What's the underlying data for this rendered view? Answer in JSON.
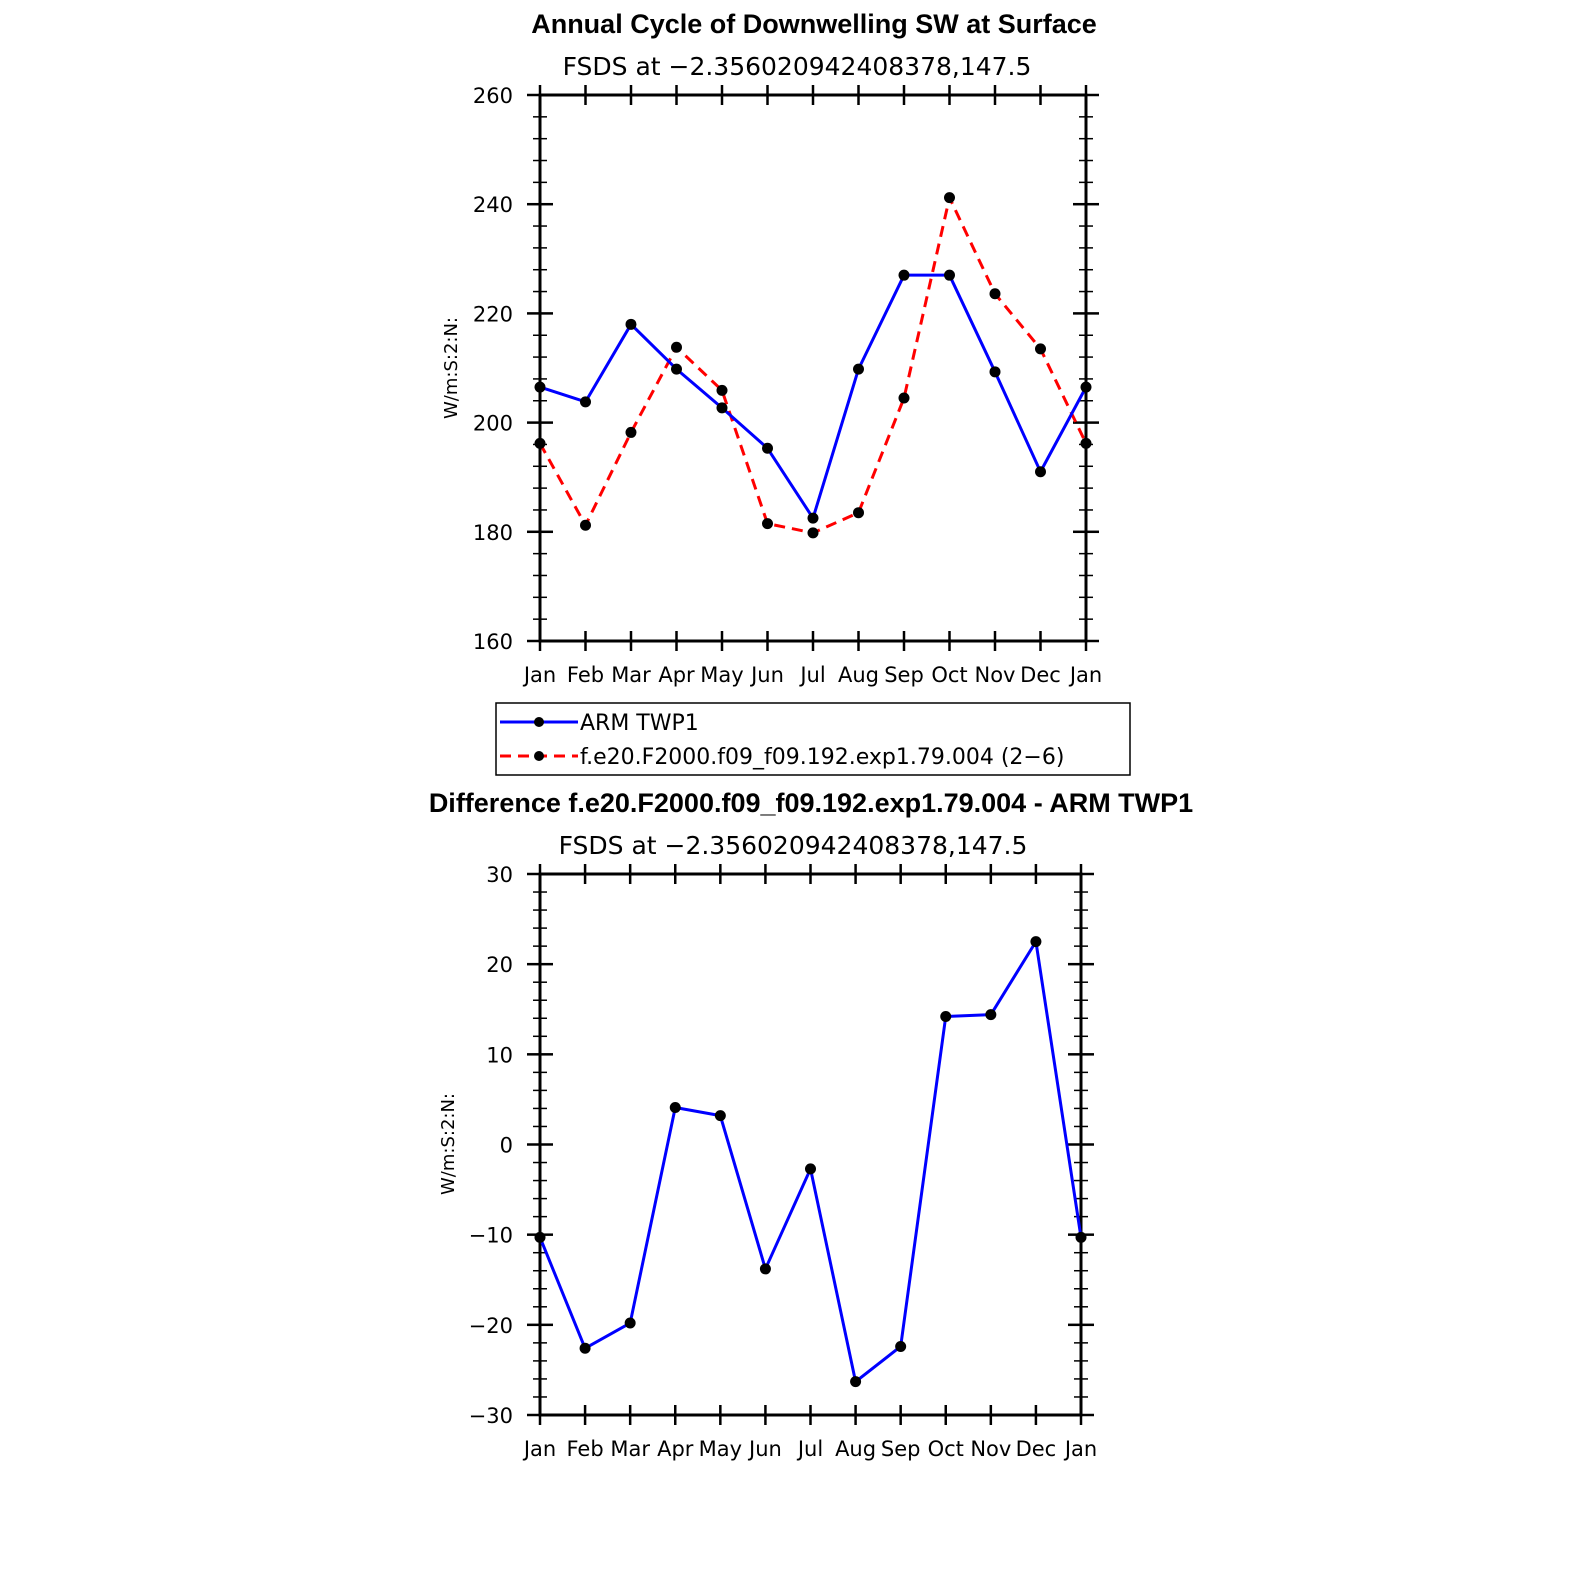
{
  "chart_data": [
    {
      "type": "line",
      "title": "Annual Cycle of Downwelling SW at Surface",
      "subtitle": "FSDS at −2.356020942408378,147.5",
      "ylabel": "W/m:S:2:N:",
      "xlabel": "",
      "categories": [
        "Jan",
        "Feb",
        "Mar",
        "Apr",
        "May",
        "Jun",
        "Jul",
        "Aug",
        "Sep",
        "Oct",
        "Nov",
        "Dec",
        "Jan"
      ],
      "ylim": [
        160,
        260
      ],
      "yticks": [
        160,
        180,
        200,
        220,
        240,
        260
      ],
      "ytick_labels": [
        "160",
        "180",
        "200",
        "220",
        "240",
        "260"
      ],
      "series": [
        {
          "name": "ARM TWP1",
          "color": "#0000ff",
          "dash": "solid",
          "values": [
            206.5,
            203.8,
            218.0,
            209.8,
            202.7,
            195.3,
            182.5,
            209.8,
            227.0,
            227.0,
            209.3,
            191.0,
            206.5
          ]
        },
        {
          "name": "f.e20.F2000.f09_f09.192.exp1.79.004 (2−6)",
          "color": "#ff0000",
          "dash": "dashed",
          "values": [
            196.2,
            181.2,
            198.2,
            213.8,
            205.9,
            181.5,
            179.8,
            183.5,
            204.5,
            241.2,
            223.6,
            213.5,
            196.2
          ]
        }
      ],
      "legend": "below"
    },
    {
      "type": "line",
      "title": "Difference f.e20.F2000.f09_f09.192.exp1.79.004 - ARM TWP1",
      "subtitle": "FSDS at −2.356020942408378,147.5",
      "ylabel": "W/m:S:2:N:",
      "xlabel": "",
      "categories": [
        "Jan",
        "Feb",
        "Mar",
        "Apr",
        "May",
        "Jun",
        "Jul",
        "Aug",
        "Sep",
        "Oct",
        "Nov",
        "Dec",
        "Jan"
      ],
      "ylim": [
        -30,
        30
      ],
      "yticks": [
        -30,
        -20,
        -10,
        0,
        10,
        20,
        30
      ],
      "ytick_labels": [
        "−30",
        "−20",
        "−10",
        "0",
        "10",
        "20",
        "30"
      ],
      "series": [
        {
          "color": "#0000ff",
          "dash": "solid",
          "values": [
            -10.3,
            -22.6,
            -19.8,
            4.1,
            3.2,
            -13.8,
            -2.7,
            -26.3,
            -22.4,
            14.2,
            14.4,
            22.5,
            -10.3
          ]
        }
      ]
    }
  ]
}
